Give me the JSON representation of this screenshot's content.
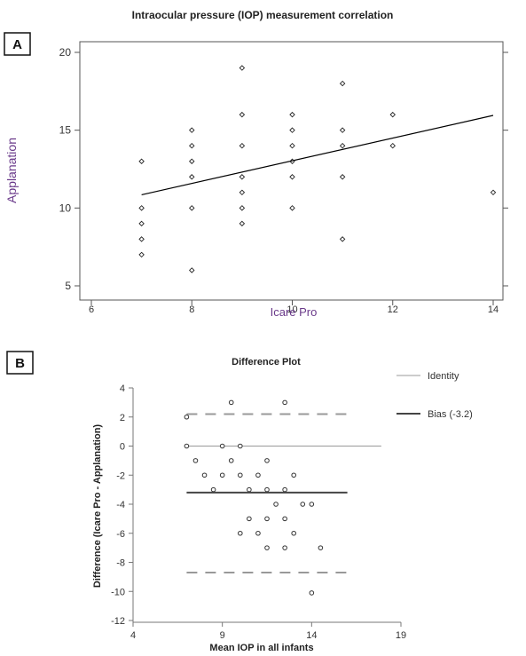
{
  "chart_data": [
    {
      "panel": "A",
      "type": "scatter",
      "title": "Intraocular pressure (IOP) measurement correlation",
      "xlabel": "Icare Pro",
      "ylabel": "Applanation",
      "xlim": [
        6,
        14
      ],
      "ylim": [
        5,
        20
      ],
      "xticks": [
        6,
        8,
        10,
        12,
        14
      ],
      "yticks": [
        5,
        10,
        15,
        20
      ],
      "grid": false,
      "points": [
        [
          7,
          13
        ],
        [
          7,
          10
        ],
        [
          7,
          9
        ],
        [
          7,
          8
        ],
        [
          7,
          7
        ],
        [
          8,
          15
        ],
        [
          8,
          14
        ],
        [
          8,
          13
        ],
        [
          8,
          12
        ],
        [
          8,
          10
        ],
        [
          8,
          6
        ],
        [
          9,
          19
        ],
        [
          9,
          16
        ],
        [
          9,
          14
        ],
        [
          9,
          12
        ],
        [
          9,
          11
        ],
        [
          9,
          10
        ],
        [
          9,
          9
        ],
        [
          10,
          16
        ],
        [
          10,
          15
        ],
        [
          10,
          14
        ],
        [
          10,
          13
        ],
        [
          10,
          12
        ],
        [
          10,
          10
        ],
        [
          11,
          18
        ],
        [
          11,
          15
        ],
        [
          11,
          14
        ],
        [
          11,
          12
        ],
        [
          11,
          8
        ],
        [
          12,
          16
        ],
        [
          12,
          14
        ],
        [
          14,
          11
        ]
      ],
      "fit_line": [
        [
          7,
          10.85
        ],
        [
          14,
          15.95
        ]
      ]
    },
    {
      "panel": "B",
      "type": "scatter",
      "title": "Difference Plot",
      "xlabel": "Mean IOP in all infants",
      "ylabel": "Difference (Icare Pro - Applanation)",
      "xlim": [
        4,
        19
      ],
      "ylim": [
        -12,
        4
      ],
      "xticks": [
        4,
        9,
        14,
        19
      ],
      "yticks": [
        -12,
        -10,
        -8,
        -6,
        -4,
        -2,
        0,
        2,
        4
      ],
      "legend": [
        {
          "label": "Identity",
          "style": "thin"
        },
        {
          "label": "Bias (-3.2)",
          "style": "thick"
        }
      ],
      "legend_position": "right",
      "identity_line": 0,
      "identity_x_range": [
        7,
        17.9
      ],
      "bias": -3.2,
      "limits_of_agreement": [
        2.2,
        -8.7
      ],
      "reference_x_range": [
        7,
        16
      ],
      "points": [
        [
          7,
          2
        ],
        [
          9.5,
          3
        ],
        [
          12.5,
          3
        ],
        [
          7,
          0
        ],
        [
          9,
          0
        ],
        [
          10,
          0
        ],
        [
          7.5,
          -1
        ],
        [
          9.5,
          -1
        ],
        [
          11.5,
          -1
        ],
        [
          8,
          -2
        ],
        [
          9,
          -2
        ],
        [
          10,
          -2
        ],
        [
          11,
          -2
        ],
        [
          13,
          -2
        ],
        [
          8.5,
          -3
        ],
        [
          10.5,
          -3
        ],
        [
          11.5,
          -3
        ],
        [
          12.5,
          -3
        ],
        [
          12,
          -4
        ],
        [
          13.5,
          -4
        ],
        [
          14,
          -4
        ],
        [
          10.5,
          -5
        ],
        [
          11.5,
          -5
        ],
        [
          12.5,
          -5
        ],
        [
          10,
          -6
        ],
        [
          11,
          -6
        ],
        [
          13,
          -6
        ],
        [
          11.5,
          -7
        ],
        [
          12.5,
          -7
        ],
        [
          14.5,
          -7
        ],
        [
          14,
          -10.1
        ]
      ]
    }
  ]
}
